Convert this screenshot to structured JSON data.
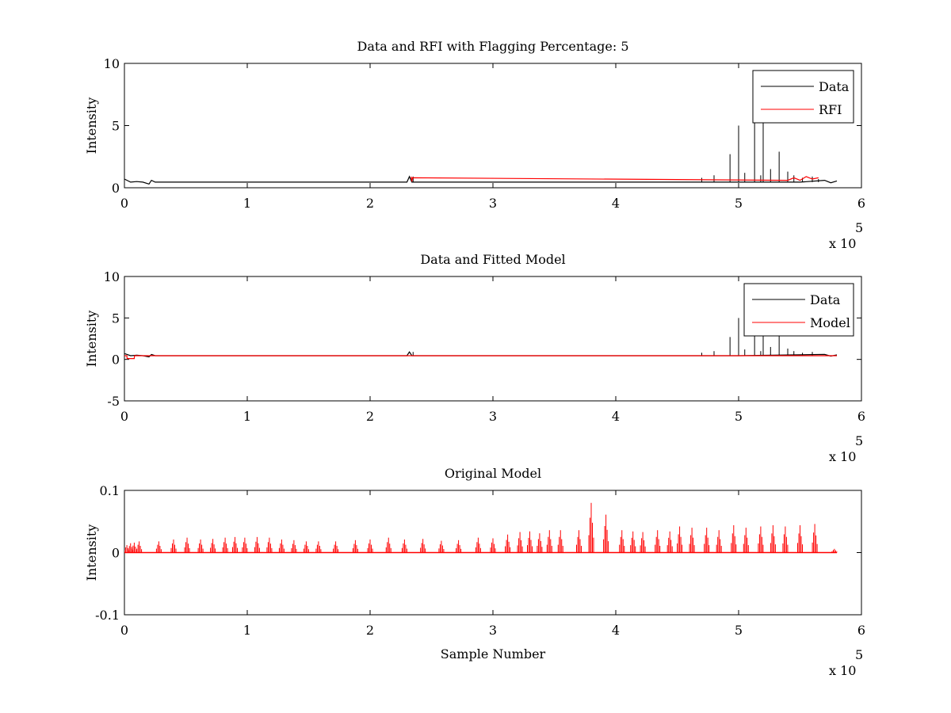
{
  "chart_data": [
    {
      "type": "line",
      "title": "Data and RFI with Flagging Percentage: 5",
      "xlabel": "",
      "ylabel": "Intensity",
      "xlim": [
        0,
        600000
      ],
      "ylim": [
        0,
        10
      ],
      "xticks": [
        "0",
        "1",
        "2",
        "3",
        "4",
        "5",
        "6"
      ],
      "yticks": [
        "0",
        "5",
        "10"
      ],
      "x_multiplier": "x 10",
      "x_multiplier_exp": "5",
      "legend": {
        "placement": "top-right",
        "entries": [
          "Data",
          "RFI"
        ]
      },
      "grid": false,
      "series": [
        {
          "name": "Data",
          "color": "#000000",
          "baseline": 0.45,
          "x": [
            0,
            5000,
            10000,
            15000,
            20000,
            22000,
            25000,
            60000,
            100000,
            150000,
            200000,
            230000,
            232000,
            234000,
            236000,
            300000,
            350000,
            400000,
            450000,
            470000,
            490000,
            510000,
            530000,
            550000,
            570000,
            575000,
            580000
          ],
          "y": [
            0.7,
            0.45,
            0.5,
            0.45,
            0.3,
            0.6,
            0.45,
            0.45,
            0.45,
            0.45,
            0.45,
            0.45,
            0.9,
            0.45,
            0.45,
            0.45,
            0.45,
            0.45,
            0.45,
            0.45,
            0.45,
            0.45,
            0.45,
            0.45,
            0.6,
            0.4,
            0.55
          ],
          "spikes_x": [
            235000,
            470000,
            480000,
            493000,
            500000,
            505000,
            513000,
            518000,
            520000,
            526000,
            533000,
            540000,
            545000,
            552000,
            560000,
            565000
          ],
          "spikes_y": [
            0.9,
            0.8,
            1.0,
            2.7,
            5.0,
            1.2,
            9.0,
            1.0,
            9.0,
            1.5,
            2.9,
            1.3,
            1.0,
            0.8,
            0.9,
            0.7
          ]
        },
        {
          "name": "RFI",
          "color": "#ff0000",
          "x": [
            233500,
            234000,
            234500,
            540000,
            545000,
            550000,
            555000,
            560000,
            565000
          ],
          "y": [
            0.9,
            0.5,
            0.8,
            0.6,
            0.8,
            0.6,
            0.9,
            0.7,
            0.8
          ]
        }
      ]
    },
    {
      "type": "line",
      "title": "Data and Fitted Model",
      "xlabel": "",
      "ylabel": "Intensity",
      "xlim": [
        0,
        600000
      ],
      "ylim": [
        -5,
        10
      ],
      "xticks": [
        "0",
        "1",
        "2",
        "3",
        "4",
        "5",
        "6"
      ],
      "yticks": [
        "-5",
        "0",
        "5",
        "10"
      ],
      "x_multiplier": "x 10",
      "x_multiplier_exp": "5",
      "legend": {
        "placement": "top-right",
        "entries": [
          "Data",
          "Model"
        ]
      },
      "grid": false,
      "series": [
        {
          "name": "Data",
          "color": "#000000",
          "baseline": 0.45,
          "x": [
            0,
            5000,
            10000,
            15000,
            20000,
            22000,
            25000,
            100000,
            200000,
            230000,
            232000,
            234000,
            236000,
            300000,
            400000,
            500000,
            570000,
            575000,
            580000
          ],
          "y": [
            0.7,
            0.45,
            0.5,
            0.45,
            0.3,
            0.6,
            0.45,
            0.45,
            0.45,
            0.45,
            0.9,
            0.45,
            0.45,
            0.45,
            0.45,
            0.45,
            0.6,
            0.4,
            0.55
          ],
          "spikes_x": [
            235000,
            470000,
            480000,
            493000,
            500000,
            505000,
            513000,
            518000,
            520000,
            526000,
            533000,
            540000,
            545000,
            552000,
            560000
          ],
          "spikes_y": [
            0.9,
            0.8,
            1.0,
            2.7,
            5.0,
            1.2,
            9.0,
            1.0,
            9.0,
            1.5,
            2.9,
            1.3,
            1.0,
            0.8,
            0.9
          ]
        },
        {
          "name": "Model",
          "color": "#ff0000",
          "x": [
            0,
            2000,
            2200,
            8000,
            8200,
            580000
          ],
          "y": [
            0.45,
            0.45,
            0.1,
            0.1,
            0.45,
            0.45
          ]
        }
      ]
    },
    {
      "type": "line",
      "title": "Original Model",
      "xlabel": "Sample Number",
      "ylabel": "Intensity",
      "xlim": [
        0,
        600000
      ],
      "ylim": [
        -0.1,
        0.1
      ],
      "xticks": [
        "0",
        "1",
        "2",
        "3",
        "4",
        "5",
        "6"
      ],
      "yticks": [
        "-0.1",
        "0",
        "0.1"
      ],
      "x_multiplier": "x 10",
      "x_multiplier_exp": "5",
      "grid": false,
      "series": [
        {
          "color": "#ff0000",
          "baseline": 0,
          "spikes_x": [
            2000,
            5000,
            8000,
            12000,
            28000,
            40000,
            51000,
            62000,
            72000,
            82000,
            90000,
            98000,
            108000,
            118000,
            128000,
            138000,
            148000,
            158000,
            172000,
            188000,
            200000,
            215000,
            228000,
            243000,
            258000,
            272000,
            288000,
            300000,
            312000,
            322000,
            330000,
            338000,
            346000,
            355000,
            370000,
            380000,
            392000,
            405000,
            414000,
            422000,
            434000,
            444000,
            452000,
            462000,
            474000,
            484000,
            496000,
            506000,
            518000,
            528000,
            538000,
            550000,
            562000,
            578000
          ],
          "spikes_y": [
            0.012,
            0.015,
            0.016,
            0.018,
            0.018,
            0.021,
            0.024,
            0.021,
            0.022,
            0.024,
            0.025,
            0.024,
            0.025,
            0.024,
            0.021,
            0.02,
            0.018,
            0.018,
            0.018,
            0.02,
            0.021,
            0.024,
            0.021,
            0.022,
            0.019,
            0.02,
            0.024,
            0.023,
            0.029,
            0.033,
            0.034,
            0.031,
            0.036,
            0.036,
            0.036,
            0.08,
            0.061,
            0.036,
            0.034,
            0.033,
            0.036,
            0.034,
            0.042,
            0.04,
            0.04,
            0.036,
            0.044,
            0.04,
            0.042,
            0.044,
            0.042,
            0.044,
            0.046,
            0.006
          ]
        }
      ]
    }
  ]
}
